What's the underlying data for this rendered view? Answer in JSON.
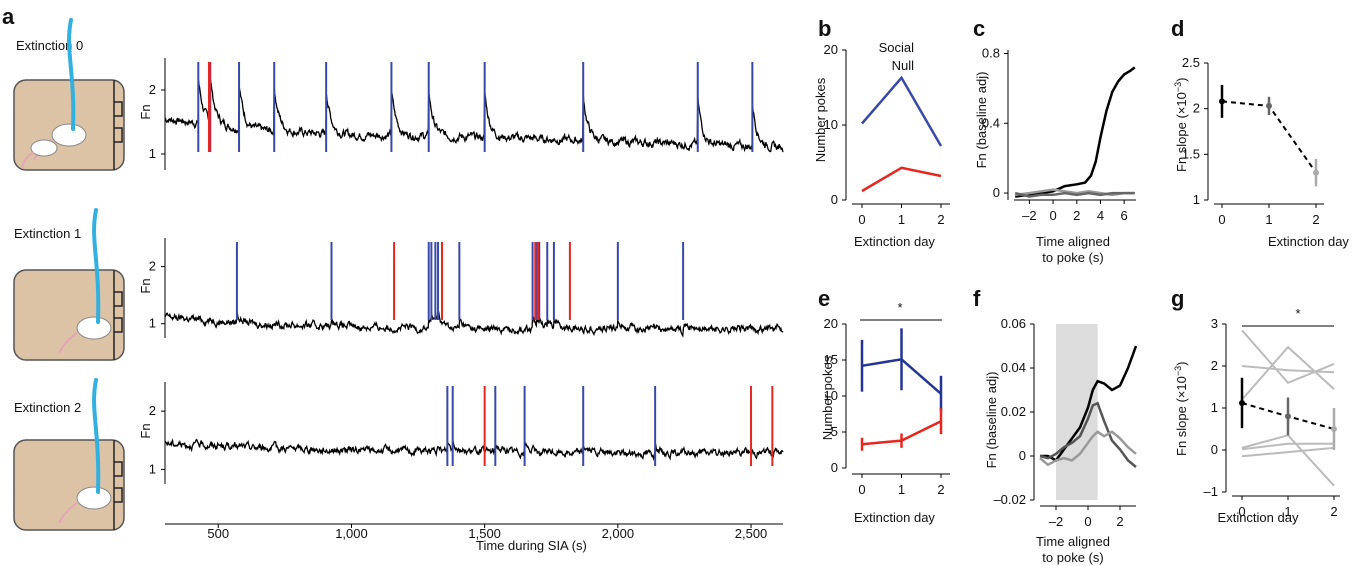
{
  "colors": {
    "social": "#3949a8",
    "null": "#e8251f",
    "trace": "#000000",
    "cable": "#33b0e0",
    "chamber": "#dcc3a5",
    "shade": "#dcdcdc"
  },
  "panels": {
    "a": "a",
    "b": "b",
    "c": "c",
    "d": "d",
    "e": "e",
    "f": "f",
    "g": "g"
  },
  "panel_a": {
    "rows": [
      {
        "label": "Extinction 0",
        "label_color": "#000000"
      },
      {
        "label": "Extinction 1",
        "label_color": "#777777"
      },
      {
        "label": "Extinction 2",
        "label_color": "#aaaaaa"
      }
    ],
    "xlabel": "Time during SIA (s)",
    "ylabel": "Fn",
    "xticks": [
      "500",
      "1,000",
      "1,500",
      "2,000",
      "2,500"
    ],
    "yticks": [
      "1",
      "2"
    ]
  },
  "chart_data": [
    {
      "panel": "a",
      "type": "line",
      "title": "",
      "xlabel": "Time during SIA (s)",
      "ylabel": "Fn",
      "xlim": [
        300,
        2620
      ],
      "ylim": [
        0.75,
        2.5
      ],
      "rows": [
        {
          "label": "Extinction 0",
          "baseline": [
            1.55,
            1.38,
            1.3,
            1.28,
            1.25,
            1.2,
            1.15,
            1.1
          ],
          "social_pokes": [
            425,
            470,
            578,
            710,
            905,
            1150,
            1290,
            1500,
            1870,
            2300,
            2505
          ],
          "null_pokes": [
            465,
            468
          ]
        },
        {
          "label": "Extinction 1",
          "baseline": [
            1.12,
            1.0,
            0.95,
            0.92,
            0.9,
            0.92,
            0.9,
            0.92
          ],
          "social_pokes": [
            570,
            925,
            1290,
            1300,
            1315,
            1325,
            1405,
            1680,
            1695,
            1705,
            1735,
            1760,
            2000,
            2245
          ],
          "null_pokes": [
            1160,
            1340,
            1690,
            1700,
            1820
          ]
        },
        {
          "label": "Extinction 2",
          "baseline": [
            1.45,
            1.38,
            1.33,
            1.32,
            1.3,
            1.28,
            1.28,
            1.3
          ],
          "social_pokes": [
            1360,
            1380,
            1540,
            1650,
            1870,
            2140
          ],
          "null_pokes": [
            1500,
            2500,
            2580
          ]
        }
      ]
    },
    {
      "panel": "b",
      "type": "line",
      "xlabel": "Extinction day",
      "ylabel": "Number pokes",
      "x": [
        0,
        1,
        2
      ],
      "ylim": [
        0,
        20
      ],
      "series": [
        {
          "name": "Social",
          "values": [
            10.2,
            16.3,
            7.2
          ]
        },
        {
          "name": "Null",
          "values": [
            1.2,
            4.3,
            3.2
          ]
        }
      ]
    },
    {
      "panel": "c",
      "type": "line",
      "xlabel": "Time aligned to poke (s)",
      "ylabel": "Fn (baseline adj)",
      "xlim": [
        -3.3,
        7.0
      ],
      "ylim": [
        -0.12,
        0.82
      ],
      "series": [
        {
          "x": [
            -3.2,
            -2,
            -1,
            0,
            1,
            2,
            2.7,
            3.2,
            3.6,
            4,
            4.5,
            5,
            5.5,
            6,
            6.5,
            6.9
          ],
          "values": [
            -0.02,
            -0.01,
            0.0,
            0.01,
            0.04,
            0.05,
            0.06,
            0.1,
            0.18,
            0.32,
            0.47,
            0.58,
            0.64,
            0.68,
            0.7,
            0.72
          ]
        },
        {
          "x": [
            -3.2,
            -2,
            -1,
            0,
            1,
            2,
            3,
            4,
            5,
            6,
            6.9
          ],
          "values": [
            -0.01,
            0.0,
            0.01,
            0.02,
            0.01,
            0.0,
            0.01,
            0.0,
            -0.01,
            0.0,
            0.0
          ]
        },
        {
          "x": [
            -3.2,
            -2,
            -1,
            0,
            1,
            2,
            3,
            4,
            5,
            6,
            6.9
          ],
          "values": [
            0.0,
            -0.02,
            -0.01,
            -0.01,
            0.0,
            -0.01,
            0.0,
            -0.01,
            0.0,
            0.0,
            0.0
          ]
        }
      ]
    },
    {
      "panel": "d",
      "type": "line",
      "xlabel": "Extinction day",
      "ylabel": "Fn slope (×10⁻³)",
      "x": [
        0,
        1,
        2
      ],
      "ylim": [
        1,
        2.5
      ],
      "values": [
        2.08,
        2.03,
        1.3
      ],
      "err": [
        0.18,
        0.1,
        0.15
      ]
    },
    {
      "panel": "e",
      "type": "line",
      "xlabel": "Extinction day",
      "ylabel": "Number pokes",
      "x": [
        0,
        1,
        2
      ],
      "ylim": [
        0,
        20
      ],
      "annotation": "*",
      "series": [
        {
          "name": "Social",
          "values": [
            14.2,
            15.1,
            10.3
          ],
          "err": [
            3.6,
            4.3,
            2.5
          ]
        },
        {
          "name": "Null",
          "values": [
            3.3,
            3.8,
            6.5
          ],
          "err": [
            0.9,
            1.0,
            1.8
          ]
        }
      ]
    },
    {
      "panel": "f",
      "type": "line",
      "xlabel": "Time aligned to poke (s)",
      "ylabel": "Fn (baseline adj)",
      "xlim": [
        -3,
        3
      ],
      "ylim": [
        -0.02,
        0.06
      ],
      "shaded": [
        -2,
        0.6
      ],
      "series": [
        {
          "x": [
            -3,
            -2.5,
            -2,
            -1.5,
            -1,
            -0.5,
            0,
            0.3,
            0.6,
            1,
            1.5,
            2,
            2.5,
            3
          ],
          "values": [
            0.0,
            0.0,
            -0.002,
            0.003,
            0.008,
            0.013,
            0.022,
            0.03,
            0.034,
            0.033,
            0.03,
            0.032,
            0.04,
            0.05
          ]
        },
        {
          "x": [
            -3,
            -2.5,
            -2,
            -1.5,
            -1,
            -0.5,
            0,
            0.3,
            0.6,
            1,
            1.5,
            2,
            2.5,
            3
          ],
          "values": [
            0.0,
            -0.001,
            0.001,
            0.004,
            0.006,
            0.009,
            0.017,
            0.023,
            0.024,
            0.016,
            0.007,
            0.003,
            -0.002,
            -0.005
          ]
        },
        {
          "x": [
            -3,
            -2.5,
            -2,
            -1.5,
            -1,
            -0.5,
            0,
            0.3,
            0.6,
            1,
            1.5,
            2,
            2.5,
            3
          ],
          "values": [
            -0.001,
            -0.004,
            -0.002,
            -0.001,
            -0.002,
            0.001,
            0.006,
            0.009,
            0.011,
            0.009,
            0.011,
            0.008,
            0.004,
            0.001
          ]
        }
      ]
    },
    {
      "panel": "g",
      "type": "line",
      "xlabel": "Extinction day",
      "ylabel": "Fn slope (×10⁻³)",
      "x": [
        0,
        1,
        2
      ],
      "ylim": [
        -1,
        3
      ],
      "annotation": "*",
      "mean": {
        "values": [
          1.12,
          0.8,
          0.5
        ],
        "err": [
          0.6,
          0.45,
          0.5
        ]
      },
      "individuals": [
        [
          2.85,
          1.6,
          2.05
        ],
        [
          2.0,
          1.9,
          1.85
        ],
        [
          1.2,
          2.45,
          1.45
        ],
        [
          0.05,
          0.35,
          -0.85
        ],
        [
          0.02,
          0.15,
          0.15
        ],
        [
          -0.15,
          -0.05,
          0.05
        ]
      ]
    }
  ],
  "legend_b": {
    "social": "Social",
    "null": "Null"
  },
  "panel_b": {
    "xlabel": "Extinction day",
    "ylabel": "Number pokes",
    "xticks": [
      "0",
      "1",
      "2"
    ],
    "yticks": [
      "0",
      "10",
      "20"
    ]
  },
  "panel_c": {
    "xlabel_1": "Time aligned",
    "xlabel_2": "to poke (s)",
    "ylabel": "Fn (baseline adj)",
    "xticks": [
      "–2",
      "0",
      "2",
      "4",
      "6"
    ],
    "yticks": [
      "0",
      "0.4",
      "0.8"
    ]
  },
  "panel_d": {
    "xlabel": "Extinction day",
    "ylabel_main": "Fn slope (×10",
    "ylabel_exp": "−3",
    "ylabel_end": ")",
    "xticks": [
      "0",
      "1",
      "2"
    ],
    "yticks": [
      "1",
      "1.5",
      "2",
      "2.5"
    ]
  },
  "panel_e": {
    "xlabel": "Extinction day",
    "ylabel": "Number pokes",
    "xticks": [
      "0",
      "1",
      "2"
    ],
    "yticks": [
      "0",
      "5",
      "10",
      "15",
      "20"
    ],
    "star": "*"
  },
  "panel_f": {
    "xlabel_1": "Time aligned",
    "xlabel_2": "to poke (s)",
    "ylabel": "Fn (baseline adj)",
    "xticks": [
      "–2",
      "0",
      "2"
    ],
    "yticks": [
      "–0.02",
      "0",
      "0.02",
      "0.04",
      "0.06"
    ]
  },
  "panel_g": {
    "xlabel": "Extinction day",
    "ylabel_main": "Fn slope (×10",
    "ylabel_exp": "−3",
    "ylabel_end": ")",
    "xticks": [
      "0",
      "1",
      "2"
    ],
    "yticks": [
      "–1",
      "0",
      "1",
      "2",
      "3"
    ],
    "star": "*"
  }
}
